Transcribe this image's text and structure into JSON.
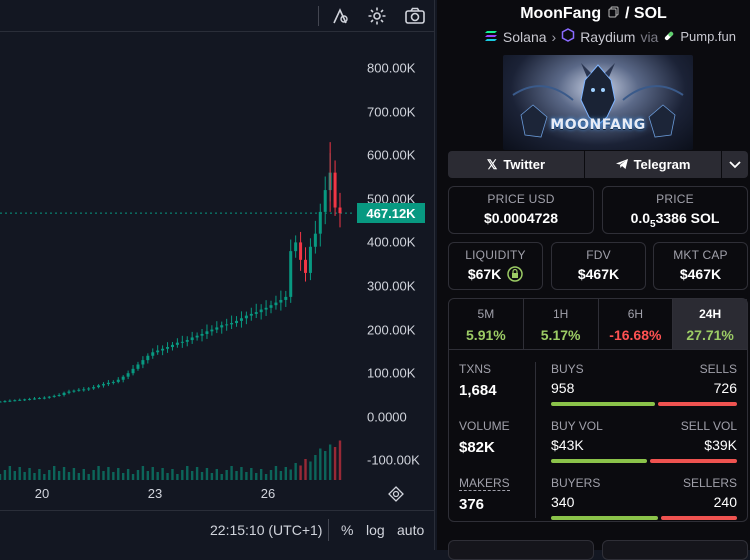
{
  "chart": {
    "price_ticks": [
      "800.00K",
      "700.00K",
      "600.00K",
      "500.00K",
      "400.00K",
      "300.00K",
      "200.00K",
      "100.00K",
      "0.0000",
      "-100.00K"
    ],
    "last_price_label": "467.12K",
    "time_ticks": [
      "20",
      "23",
      "26"
    ],
    "time_display": "22:15:10 (UTC+1)",
    "percent_label": "%",
    "log_label": "log",
    "auto_label": "auto",
    "colors": {
      "up": "#089981",
      "down": "#f23645",
      "bg": "#131722"
    }
  },
  "chart_data": {
    "type": "candlestick",
    "ylim": [
      -150000,
      860000
    ],
    "last_price": 467120,
    "close_series": [
      35000,
      36000,
      37000,
      38000,
      39000,
      40000,
      41000,
      42000,
      43000,
      44000,
      46000,
      48000,
      50000,
      55000,
      58000,
      60000,
      62000,
      63000,
      65000,
      68000,
      72000,
      75000,
      78000,
      80000,
      85000,
      92000,
      100000,
      110000,
      120000,
      130000,
      140000,
      148000,
      152000,
      156000,
      160000,
      165000,
      170000,
      172000,
      176000,
      182000,
      186000,
      190000,
      196000,
      200000,
      205000,
      210000,
      212000,
      215000,
      220000,
      226000,
      232000,
      236000,
      240000,
      246000,
      250000,
      256000,
      262000,
      268000,
      275000,
      380000,
      400000,
      360000,
      330000,
      390000,
      420000,
      470000,
      520000,
      560000,
      480000,
      467120
    ]
  },
  "info": {
    "token_name": "MoonFang",
    "quote": "SOL",
    "chain": "Solana",
    "dex": "Raydium",
    "via": "via",
    "launchpad": "Pump.fun",
    "banner_logo": "MOONFANG",
    "twitter_label": "Twitter",
    "telegram_label": "Telegram"
  },
  "prices": {
    "usd_label": "PRICE USD",
    "usd_value": "$0.0004728",
    "native_label": "PRICE",
    "native_value_prefix": "0.0",
    "native_value_sub": "5",
    "native_value_rest": "3386 SOL"
  },
  "metrics": [
    {
      "label": "LIQUIDITY",
      "value": "$67K"
    },
    {
      "label": "FDV",
      "value": "$467K"
    },
    {
      "label": "MKT CAP",
      "value": "$467K"
    }
  ],
  "timeframes": [
    {
      "label": "5M",
      "value": "5.91%",
      "dir": "pos"
    },
    {
      "label": "1H",
      "value": "5.17%",
      "dir": "pos"
    },
    {
      "label": "6H",
      "value": "-16.68%",
      "dir": "neg"
    },
    {
      "label": "24H",
      "value": "27.71%",
      "dir": "pos"
    }
  ],
  "stats": {
    "txns_label": "TXNS",
    "txns_value": "1,684",
    "buys_label": "BUYS",
    "buys_value": "958",
    "sells_label": "SELLS",
    "sells_value": "726",
    "volume_label": "VOLUME",
    "volume_value": "$82K",
    "buyvol_label": "BUY VOL",
    "buyvol_value": "$43K",
    "sellvol_label": "SELL VOL",
    "sellvol_value": "$39K",
    "makers_label": "MAKERS",
    "makers_value": "376",
    "buyers_label": "BUYERS",
    "buyers_value": "340",
    "sellers_label": "SELLERS",
    "sellers_value": "240",
    "buys_ratio": 0.569,
    "buyvol_ratio": 0.524,
    "buyers_ratio": 0.586
  }
}
